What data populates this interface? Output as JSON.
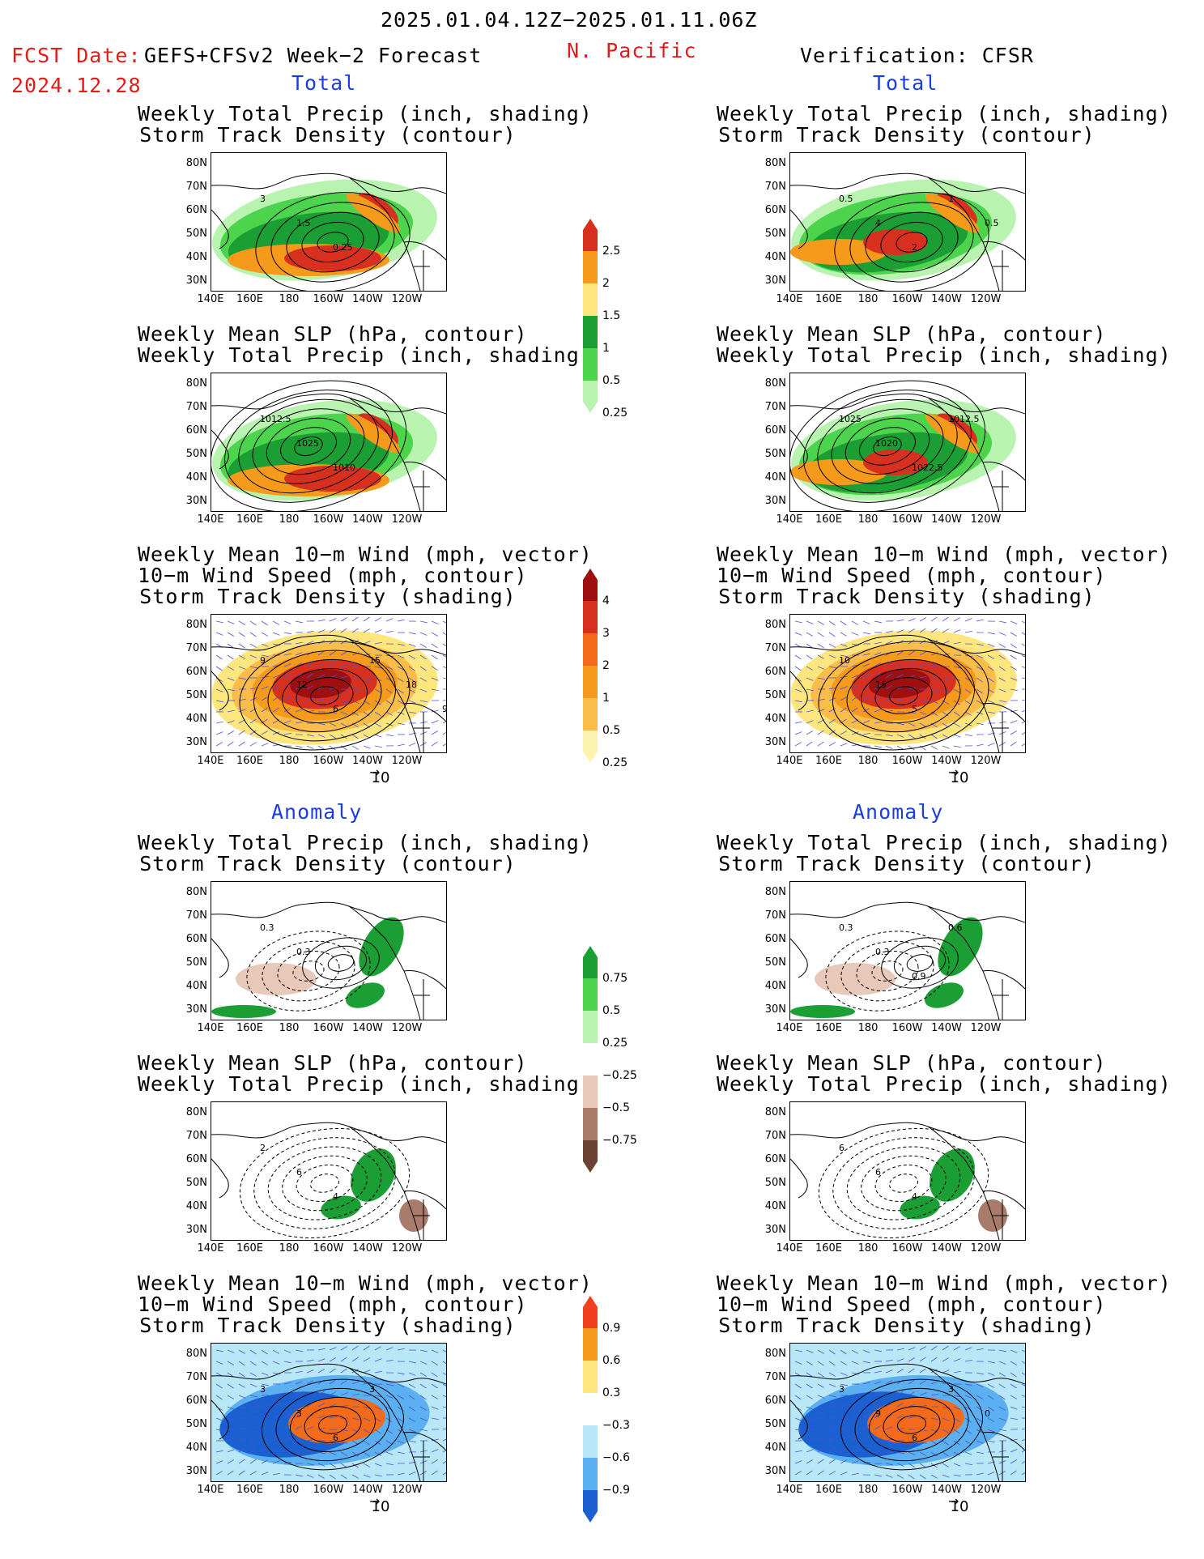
{
  "header": {
    "dates": "2025.01.04.12Z−2025.01.11.06Z",
    "region": "N. Pacific",
    "fcst_label": "FCST Date:",
    "fcst_model": "GEFS+CFSv2 Week−2 Forecast",
    "fcst_date": "2024.12.28",
    "verification": "Verification: CFSR"
  },
  "sections": {
    "total": "Total",
    "anomaly": "Anomaly"
  },
  "panel_titles": {
    "precip_storm": [
      "Weekly Total Precip (inch, shading)",
      "Storm Track Density (contour)"
    ],
    "slp_precip": [
      "Weekly Mean SLP (hPa, contour)",
      "Weekly Total Precip (inch, shading)"
    ],
    "wind_storm": [
      "Weekly Mean 10−m Wind (mph, vector)",
      "10−m Wind Speed (mph, contour)",
      "Storm Track Density (shading)"
    ]
  },
  "axes": {
    "lat_labels": [
      "80N",
      "70N",
      "60N",
      "50N",
      "40N",
      "30N"
    ],
    "lon_labels": [
      "140E",
      "160E",
      "180",
      "160W",
      "140W",
      "120W"
    ],
    "vector_ref": "10"
  },
  "colorbars": {
    "precip_total": {
      "labels": [
        "2.5",
        "2",
        "1.5",
        "1",
        "0.5",
        "0.25"
      ],
      "colors": [
        "#d7301f",
        "#f59a1a",
        "#fde67e",
        "#1b9e33",
        "#4cd44c",
        "#b8f4b0"
      ]
    },
    "storm_total": {
      "labels": [
        "4",
        "3",
        "2",
        "1",
        "0.5",
        "0.25"
      ],
      "colors": [
        "#9e0f0f",
        "#d7301f",
        "#f26a1a",
        "#f59a1a",
        "#fbbd4a",
        "#fdf3b0"
      ]
    },
    "precip_anom": {
      "labels": [
        "0.75",
        "0.5",
        "0.25",
        "−0.25",
        "−0.5",
        "−0.75"
      ],
      "colors": [
        "#1b9e33",
        "#4cd44c",
        "#b8f4b0",
        "#ffffff",
        "#e8c8b8",
        "#a97b6a",
        "#6b4333"
      ]
    },
    "storm_anom": {
      "labels": [
        "0.9",
        "0.6",
        "0.3",
        "−0.3",
        "−0.6",
        "−0.9"
      ],
      "colors": [
        "#f04020",
        "#f59a1a",
        "#fde67e",
        "#ffffff",
        "#b8e8f8",
        "#5ab0f0",
        "#1a60d0"
      ]
    }
  },
  "contour_labels": {
    "p1": [
      "3",
      "1.5",
      "0.25"
    ],
    "p2": [
      "1012.5",
      "1025",
      "1010"
    ],
    "p3": [
      "9",
      "12",
      "6",
      "15",
      "18",
      "9",
      "3"
    ],
    "p4": [
      "0.3",
      "0.3"
    ],
    "p5": [
      "2",
      "6",
      "4"
    ],
    "p6": [
      "3",
      "3",
      "6",
      "3"
    ],
    "v1": [
      "0.5",
      "4",
      "2",
      "1",
      "0.5"
    ],
    "v2": [
      "1025",
      "1020",
      "1022.5",
      "1012.5"
    ],
    "v3": [
      "10",
      "15",
      "5"
    ],
    "v4": [
      "0.3",
      "0.3",
      "0.9",
      "0.6"
    ],
    "v5": [
      "6",
      "6",
      "4"
    ],
    "v6": [
      "3",
      "9",
      "6",
      "3",
      "0"
    ]
  }
}
